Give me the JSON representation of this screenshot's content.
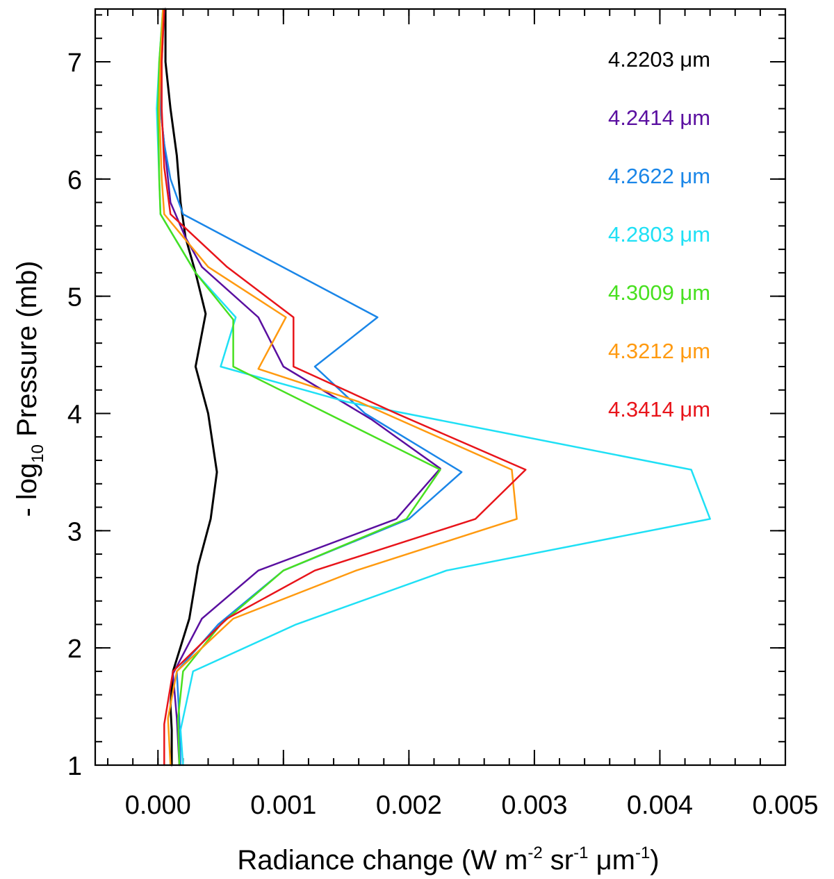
{
  "chart_data": {
    "type": "line",
    "title": "",
    "xlabel": {
      "main": "Radiance change (W m",
      "e1": "-2",
      "mid1": " sr",
      "e2": "-1",
      "mid2": " μm",
      "e3": "-1",
      "end": ")"
    },
    "ylabel": {
      "prefix": "- log",
      "subscript": "10",
      "suffix": " Pressure (mb)"
    },
    "xlim": [
      -0.0005,
      0.005
    ],
    "ylim": [
      1,
      7.45
    ],
    "xticks": [
      0.0,
      0.001,
      0.002,
      0.003,
      0.004,
      0.005
    ],
    "xtick_labels": [
      "0.000",
      "0.001",
      "0.002",
      "0.003",
      "0.004",
      "0.005"
    ],
    "yticks": [
      1,
      2,
      3,
      4,
      5,
      6,
      7
    ],
    "ytick_labels": [
      "1",
      "2",
      "3",
      "4",
      "5",
      "6",
      "7"
    ],
    "x_minor_step": 0.0002,
    "y_minor_step": 0.2,
    "legend_position": "top-right",
    "series": [
      {
        "name": "4.2203 μm",
        "color": "#000000",
        "width": 3,
        "points": [
          [
            6e-05,
            7.45
          ],
          [
            6e-05,
            7.0
          ],
          [
            0.0001,
            6.6
          ],
          [
            0.00015,
            6.2
          ],
          [
            0.00018,
            5.8
          ],
          [
            0.00022,
            5.5
          ],
          [
            0.0003,
            5.2
          ],
          [
            0.00038,
            4.85
          ],
          [
            0.0003,
            4.4
          ],
          [
            0.0004,
            4.0
          ],
          [
            0.00047,
            3.5
          ],
          [
            0.00042,
            3.1
          ],
          [
            0.00032,
            2.7
          ],
          [
            0.00025,
            2.25
          ],
          [
            0.00012,
            1.8
          ],
          [
            0.0001,
            1.5
          ],
          [
            0.00011,
            1.3
          ],
          [
            0.00011,
            1.0
          ]
        ]
      },
      {
        "name": "4.2414 μm",
        "color": "#5a0fa0",
        "width": 2.5,
        "points": [
          [
            5e-05,
            7.45
          ],
          [
            2e-05,
            7.0
          ],
          [
            2e-05,
            6.6
          ],
          [
            6e-05,
            6.2
          ],
          [
            0.0001,
            5.8
          ],
          [
            0.00022,
            5.5
          ],
          [
            0.00035,
            5.25
          ],
          [
            0.0008,
            4.82
          ],
          [
            0.001,
            4.4
          ],
          [
            0.0017,
            3.95
          ],
          [
            0.00225,
            3.53
          ],
          [
            0.0019,
            3.1
          ],
          [
            0.0008,
            2.66
          ],
          [
            0.00035,
            2.25
          ],
          [
            0.00012,
            1.78
          ],
          [
            0.00015,
            1.4
          ],
          [
            0.00017,
            1.0
          ]
        ]
      },
      {
        "name": "4.2622 μm",
        "color": "#1a86e8",
        "width": 2.5,
        "points": [
          [
            5e-05,
            7.45
          ],
          [
            3e-05,
            7.0
          ],
          [
            2e-05,
            6.6
          ],
          [
            5e-05,
            6.3
          ],
          [
            0.0001,
            6.0
          ],
          [
            0.0002,
            5.7
          ],
          [
            0.00175,
            4.82
          ],
          [
            0.00125,
            4.4
          ],
          [
            0.00165,
            4.0
          ],
          [
            0.00242,
            3.5
          ],
          [
            0.002,
            3.1
          ],
          [
            0.001,
            2.66
          ],
          [
            0.00048,
            2.2
          ],
          [
            0.00015,
            1.8
          ],
          [
            0.00017,
            1.4
          ],
          [
            0.00018,
            1.0
          ]
        ]
      },
      {
        "name": "4.2803 μm",
        "color": "#1fe0f5",
        "width": 2.5,
        "points": [
          [
            4e-05,
            7.45
          ],
          [
            1e-05,
            7.0
          ],
          [
            -1e-05,
            6.6
          ],
          [
            1e-05,
            6.0
          ],
          [
            2e-05,
            5.7
          ],
          [
            0.0003,
            5.2
          ],
          [
            0.00062,
            4.82
          ],
          [
            0.0005,
            4.4
          ],
          [
            0.0015,
            4.1
          ],
          [
            0.00425,
            3.52
          ],
          [
            0.0044,
            3.1
          ],
          [
            0.0023,
            2.66
          ],
          [
            0.0011,
            2.2
          ],
          [
            0.00028,
            1.8
          ],
          [
            0.00018,
            1.3
          ],
          [
            0.0002,
            1.0
          ]
        ]
      },
      {
        "name": "4.3009 μm",
        "color": "#48e020",
        "width": 2.5,
        "points": [
          [
            4e-05,
            7.45
          ],
          [
            1e-05,
            7.0
          ],
          [
            0.0,
            6.6
          ],
          [
            1e-05,
            6.0
          ],
          [
            2e-05,
            5.7
          ],
          [
            0.0003,
            5.2
          ],
          [
            0.0006,
            4.8
          ],
          [
            0.0006,
            4.4
          ],
          [
            0.00225,
            3.52
          ],
          [
            0.00198,
            3.1
          ],
          [
            0.001,
            2.66
          ],
          [
            0.0005,
            2.2
          ],
          [
            0.0002,
            1.8
          ],
          [
            0.00016,
            1.4
          ],
          [
            0.00017,
            1.0
          ]
        ]
      },
      {
        "name": "4.3212 μm",
        "color": "#ff9a10",
        "width": 2.5,
        "points": [
          [
            4e-05,
            7.45
          ],
          [
            2e-05,
            7.0
          ],
          [
            1e-05,
            6.6
          ],
          [
            3e-05,
            6.0
          ],
          [
            5e-05,
            5.7
          ],
          [
            0.0004,
            5.25
          ],
          [
            0.00102,
            4.82
          ],
          [
            0.0008,
            4.38
          ],
          [
            0.0016,
            4.1
          ],
          [
            0.00282,
            3.52
          ],
          [
            0.00286,
            3.1
          ],
          [
            0.00158,
            2.66
          ],
          [
            0.0006,
            2.25
          ],
          [
            0.00015,
            1.8
          ],
          [
            8e-05,
            1.4
          ],
          [
            0.0001,
            1.0
          ]
        ]
      },
      {
        "name": "4.3414 μm",
        "color": "#e8141a",
        "width": 2.5,
        "points": [
          [
            5e-05,
            7.45
          ],
          [
            3e-05,
            7.0
          ],
          [
            3e-05,
            6.6
          ],
          [
            5e-05,
            6.1
          ],
          [
            0.0001,
            5.7
          ],
          [
            0.00055,
            5.25
          ],
          [
            0.00108,
            4.82
          ],
          [
            0.00108,
            4.4
          ],
          [
            0.0019,
            4.0
          ],
          [
            0.00293,
            3.52
          ],
          [
            0.00253,
            3.1
          ],
          [
            0.00125,
            2.66
          ],
          [
            0.00055,
            2.25
          ],
          [
            0.00012,
            1.8
          ],
          [
            5e-05,
            1.35
          ],
          [
            5e-05,
            1.0
          ]
        ]
      }
    ]
  }
}
